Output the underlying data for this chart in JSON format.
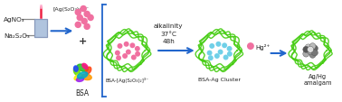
{
  "background_color": "#ffffff",
  "reagents": {
    "agno3": "AgNO₃",
    "na2s2o3": "Na₂S₂O₃",
    "complex": "[Ag(S₂O₃)₂]³⁻",
    "bsa": "BSA",
    "bsa_complex": "BSA-[Ag(S₂O₃)₂]³⁻",
    "bsa_cluster": "BSA-Ag Cluster",
    "hg": "Hg²⁺",
    "product": "Ag/Hg\namalgam",
    "conditions": "alkalinity\n37°C\n48h"
  },
  "colors": {
    "arrow": "#2266cc",
    "bracket": "#2266cc",
    "pink_dot": "#f070a0",
    "cyan_dot": "#70d0e8",
    "green_wire": "#44cc10",
    "text": "#222222",
    "beaker_fill": "#b0c4de",
    "needle_red": "#ee2244",
    "needle_pink": "#ffaacc",
    "plus": "#333333",
    "bsa_colors": [
      "#22bb22",
      "#66dd00",
      "#ffee00",
      "#ff9900",
      "#ff4411",
      "#ff1188",
      "#9922ee",
      "#2244ff",
      "#00aacc"
    ],
    "gray_dots": [
      "#aaaaaa",
      "#888888",
      "#cccccc",
      "#666666",
      "#999999",
      "#555555",
      "#bbbbbb",
      "#777777",
      "#dddddd"
    ]
  },
  "layout": {
    "figw": 3.78,
    "figh": 1.14,
    "dpi": 100
  }
}
